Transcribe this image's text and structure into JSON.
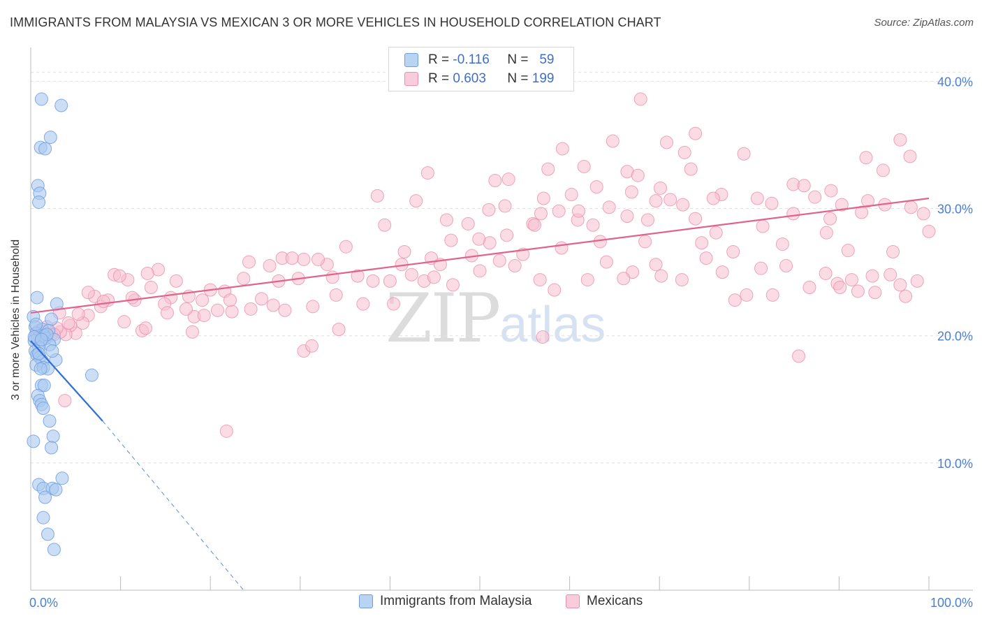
{
  "title": "IMMIGRANTS FROM MALAYSIA VS MEXICAN 3 OR MORE VEHICLES IN HOUSEHOLD CORRELATION CHART",
  "source": "Source: ZipAtlas.com",
  "watermark": {
    "zip": "ZIP",
    "atlas": "atlas"
  },
  "colors": {
    "blue": "#a9c8f0",
    "blue_stroke": "#6f9edf",
    "blue_line": "#2f6fd6",
    "pink": "#f7bfd0",
    "pink_stroke": "#ea8fad",
    "pink_line": "#e0638c",
    "tick_label": "#4a7fd1",
    "grid": "#e0e0e0"
  },
  "legend": {
    "rows": [
      {
        "r_label": "R =",
        "r_value": "-0.116",
        "n_label": "N =",
        "n_value": "59"
      },
      {
        "r_label": "R =",
        "r_value": "0.603",
        "n_label": "N =",
        "n_value": "199"
      }
    ]
  },
  "bottom_legend": {
    "series1": "Immigrants from Malaysia",
    "series2": "Mexicans"
  },
  "chart_data": {
    "type": "scatter",
    "xlabel": "",
    "ylabel": "3 or more Vehicles in Household",
    "xlim": [
      0,
      100
    ],
    "ylim": [
      0,
      42
    ],
    "x_tick_labels": [
      "0.0%",
      "100.0%"
    ],
    "y_ticks": [
      10,
      20,
      30,
      40
    ],
    "y_tick_labels": [
      "10.0%",
      "20.0%",
      "30.0%",
      "40.0%"
    ],
    "series": [
      {
        "name": "Immigrants from Malaysia",
        "R": -0.116,
        "N": 59,
        "trend_solid": {
          "x": [
            0.0,
            8.0
          ],
          "y": [
            19.6,
            13.3
          ]
        },
        "trend_dashed": {
          "x": [
            8.0,
            23.7
          ],
          "y": [
            13.3,
            0.0
          ]
        },
        "points": [
          [
            1.2,
            38.6
          ],
          [
            3.4,
            38.1
          ],
          [
            2.2,
            35.6
          ],
          [
            1.1,
            34.8
          ],
          [
            1.6,
            34.7
          ],
          [
            0.8,
            31.8
          ],
          [
            1.0,
            31.2
          ],
          [
            0.9,
            30.5
          ],
          [
            0.7,
            23.0
          ],
          [
            2.9,
            22.5
          ],
          [
            0.3,
            21.5
          ],
          [
            2.3,
            21.3
          ],
          [
            0.5,
            20.7
          ],
          [
            1.3,
            20.5
          ],
          [
            2.0,
            20.4
          ],
          [
            0.6,
            20.2
          ],
          [
            1.5,
            20.0
          ],
          [
            0.8,
            19.8
          ],
          [
            1.7,
            19.8
          ],
          [
            2.6,
            19.7
          ],
          [
            0.4,
            19.6
          ],
          [
            1.1,
            19.5
          ],
          [
            2.1,
            19.3
          ],
          [
            0.9,
            19.1
          ],
          [
            0.5,
            18.8
          ],
          [
            0.7,
            18.5
          ],
          [
            1.0,
            18.3
          ],
          [
            1.3,
            18.0
          ],
          [
            2.8,
            18.1
          ],
          [
            0.6,
            17.7
          ],
          [
            1.4,
            17.5
          ],
          [
            1.9,
            17.4
          ],
          [
            1.1,
            17.4
          ],
          [
            6.8,
            16.9
          ],
          [
            1.2,
            16.1
          ],
          [
            1.5,
            16.1
          ],
          [
            0.8,
            15.3
          ],
          [
            1.0,
            14.9
          ],
          [
            1.2,
            14.6
          ],
          [
            1.4,
            14.3
          ],
          [
            2.1,
            13.3
          ],
          [
            2.5,
            12.1
          ],
          [
            0.3,
            11.7
          ],
          [
            2.3,
            11.2
          ],
          [
            3.5,
            8.8
          ],
          [
            0.9,
            8.3
          ],
          [
            1.4,
            8.0
          ],
          [
            2.4,
            8.0
          ],
          [
            2.8,
            7.9
          ],
          [
            1.6,
            7.3
          ],
          [
            1.4,
            5.7
          ],
          [
            1.9,
            4.4
          ],
          [
            2.6,
            3.2
          ],
          [
            0.6,
            20.9
          ],
          [
            1.8,
            20.1
          ],
          [
            0.4,
            19.9
          ],
          [
            1.2,
            19.7
          ],
          [
            2.4,
            18.8
          ],
          [
            0.9,
            18.6
          ]
        ]
      },
      {
        "name": "Mexicans",
        "R": 0.603,
        "N": 199,
        "trend": {
          "x": [
            0,
            100
          ],
          "y": [
            21.8,
            30.8
          ]
        },
        "points": [
          [
            67.9,
            38.6
          ],
          [
            96.8,
            35.4
          ],
          [
            93.0,
            34.0
          ],
          [
            74.0,
            35.9
          ],
          [
            70.8,
            35.2
          ],
          [
            64.8,
            35.3
          ],
          [
            59.2,
            34.7
          ],
          [
            72.8,
            34.4
          ],
          [
            79.4,
            34.3
          ],
          [
            97.9,
            34.1
          ],
          [
            57.6,
            33.1
          ],
          [
            61.6,
            33.3
          ],
          [
            94.9,
            33.0
          ],
          [
            66.4,
            32.9
          ],
          [
            73.5,
            33.1
          ],
          [
            84.9,
            31.9
          ],
          [
            86.1,
            31.8
          ],
          [
            76.9,
            31.1
          ],
          [
            89.1,
            31.4
          ],
          [
            67.6,
            32.6
          ],
          [
            70.1,
            31.6
          ],
          [
            71.2,
            30.7
          ],
          [
            76.0,
            30.8
          ],
          [
            87.3,
            30.9
          ],
          [
            93.2,
            30.6
          ],
          [
            53.2,
            32.3
          ],
          [
            63.0,
            31.7
          ],
          [
            60.2,
            31.1
          ],
          [
            66.9,
            31.3
          ],
          [
            51.7,
            32.2
          ],
          [
            44.2,
            32.8
          ],
          [
            38.6,
            31.0
          ],
          [
            42.9,
            30.6
          ],
          [
            52.8,
            30.2
          ],
          [
            56.8,
            29.6
          ],
          [
            64.4,
            30.1
          ],
          [
            69.6,
            30.6
          ],
          [
            72.6,
            30.3
          ],
          [
            80.9,
            30.8
          ],
          [
            90.3,
            30.3
          ],
          [
            92.5,
            29.7
          ],
          [
            82.5,
            30.4
          ],
          [
            57.1,
            30.8
          ],
          [
            58.8,
            29.8
          ],
          [
            60.9,
            29.1
          ],
          [
            66.4,
            29.4
          ],
          [
            68.7,
            29.1
          ],
          [
            74.0,
            29.2
          ],
          [
            76.3,
            28.1
          ],
          [
            81.5,
            28.6
          ],
          [
            84.9,
            29.6
          ],
          [
            89.0,
            29.2
          ],
          [
            95.1,
            30.3
          ],
          [
            99.4,
            29.6
          ],
          [
            51.0,
            29.9
          ],
          [
            46.3,
            29.1
          ],
          [
            48.7,
            28.8
          ],
          [
            55.9,
            28.8
          ],
          [
            61.0,
            29.8
          ],
          [
            68.4,
            27.4
          ],
          [
            56.1,
            28.7
          ],
          [
            62.6,
            28.7
          ],
          [
            53.0,
            27.9
          ],
          [
            51.1,
            27.3
          ],
          [
            49.1,
            26.3
          ],
          [
            44.6,
            26.1
          ],
          [
            43.8,
            24.3
          ],
          [
            41.3,
            25.6
          ],
          [
            40.0,
            24.3
          ],
          [
            35.1,
            27.0
          ],
          [
            33.0,
            25.6
          ],
          [
            33.6,
            24.6
          ],
          [
            32.0,
            26.0
          ],
          [
            30.4,
            26.0
          ],
          [
            28.0,
            26.1
          ],
          [
            26.6,
            25.5
          ],
          [
            27.6,
            24.3
          ],
          [
            24.3,
            25.8
          ],
          [
            23.7,
            24.5
          ],
          [
            21.6,
            23.5
          ],
          [
            22.4,
            21.9
          ],
          [
            20.0,
            23.6
          ],
          [
            19.1,
            22.8
          ],
          [
            18.2,
            21.5
          ],
          [
            17.3,
            22.1
          ],
          [
            15.6,
            23.0
          ],
          [
            14.9,
            22.5
          ],
          [
            13.4,
            23.8
          ],
          [
            12.4,
            20.4
          ],
          [
            11.6,
            22.8
          ],
          [
            10.8,
            24.4
          ],
          [
            9.3,
            24.8
          ],
          [
            8.6,
            22.8
          ],
          [
            7.8,
            22.3
          ],
          [
            7.1,
            23.1
          ],
          [
            6.4,
            21.6
          ],
          [
            5.8,
            21.0
          ],
          [
            5.0,
            20.2
          ],
          [
            4.4,
            20.8
          ],
          [
            3.9,
            20.1
          ],
          [
            3.3,
            20.3
          ],
          [
            2.9,
            20.6
          ],
          [
            2.3,
            20.1
          ],
          [
            1.8,
            20.7
          ],
          [
            1.3,
            19.9
          ],
          [
            0.9,
            20.4
          ],
          [
            1.5,
            20.3
          ],
          [
            2.6,
            20.1
          ],
          [
            0.5,
            19.8
          ],
          [
            3.8,
            14.9
          ],
          [
            21.8,
            12.5
          ],
          [
            30.4,
            18.8
          ],
          [
            31.3,
            19.2
          ],
          [
            34.3,
            20.5
          ],
          [
            57.0,
            19.9
          ],
          [
            85.5,
            18.4
          ],
          [
            98.0,
            30.1
          ],
          [
            100.0,
            28.2
          ],
          [
            98.7,
            24.3
          ],
          [
            97.4,
            23.1
          ],
          [
            96.8,
            24.0
          ],
          [
            95.7,
            24.8
          ],
          [
            94.0,
            23.4
          ],
          [
            92.1,
            23.5
          ],
          [
            91.4,
            24.4
          ],
          [
            89.8,
            24.1
          ],
          [
            88.5,
            24.9
          ],
          [
            86.7,
            23.8
          ],
          [
            84.1,
            25.5
          ],
          [
            82.6,
            23.2
          ],
          [
            81.3,
            25.3
          ],
          [
            79.7,
            23.2
          ],
          [
            78.2,
            26.6
          ],
          [
            77.0,
            25.0
          ],
          [
            74.7,
            27.3
          ],
          [
            72.5,
            24.4
          ],
          [
            69.6,
            25.6
          ],
          [
            67.0,
            25.0
          ],
          [
            64.1,
            25.8
          ],
          [
            62.0,
            24.4
          ],
          [
            59.1,
            26.9
          ],
          [
            56.7,
            24.4
          ],
          [
            54.8,
            26.4
          ],
          [
            52.2,
            25.9
          ],
          [
            50.0,
            25.1
          ],
          [
            47.0,
            24.0
          ],
          [
            45.6,
            25.6
          ],
          [
            42.4,
            24.8
          ],
          [
            40.4,
            22.5
          ],
          [
            38.1,
            24.3
          ],
          [
            36.4,
            24.7
          ],
          [
            34.0,
            23.2
          ],
          [
            31.4,
            22.3
          ],
          [
            29.8,
            24.5
          ],
          [
            28.3,
            22.0
          ],
          [
            25.7,
            22.9
          ],
          [
            24.5,
            22.1
          ],
          [
            22.2,
            22.8
          ],
          [
            20.8,
            22.0
          ],
          [
            19.3,
            21.6
          ],
          [
            17.6,
            23.1
          ],
          [
            16.2,
            24.3
          ],
          [
            14.2,
            25.2
          ],
          [
            13.0,
            24.9
          ],
          [
            11.3,
            23.0
          ],
          [
            9.9,
            24.7
          ],
          [
            8.1,
            22.7
          ],
          [
            6.4,
            23.4
          ],
          [
            5.3,
            21.7
          ],
          [
            4.2,
            21.0
          ],
          [
            3.2,
            21.8
          ],
          [
            10.4,
            21.1
          ],
          [
            12.8,
            20.6
          ],
          [
            15.2,
            21.8
          ],
          [
            18.0,
            20.3
          ],
          [
            27.0,
            22.4
          ],
          [
            29.1,
            26.1
          ],
          [
            37.0,
            22.5
          ],
          [
            39.4,
            28.7
          ],
          [
            41.6,
            26.6
          ],
          [
            44.9,
            24.6
          ],
          [
            46.8,
            27.5
          ],
          [
            49.9,
            27.6
          ],
          [
            53.9,
            25.5
          ],
          [
            58.3,
            23.6
          ],
          [
            63.4,
            27.4
          ],
          [
            66.0,
            24.5
          ],
          [
            70.2,
            24.7
          ],
          [
            75.2,
            26.1
          ],
          [
            78.4,
            22.8
          ],
          [
            83.7,
            27.2
          ],
          [
            88.6,
            28.1
          ],
          [
            90.1,
            23.8
          ],
          [
            93.7,
            24.7
          ],
          [
            96.0,
            26.6
          ],
          [
            91.0,
            26.7
          ]
        ]
      }
    ]
  }
}
